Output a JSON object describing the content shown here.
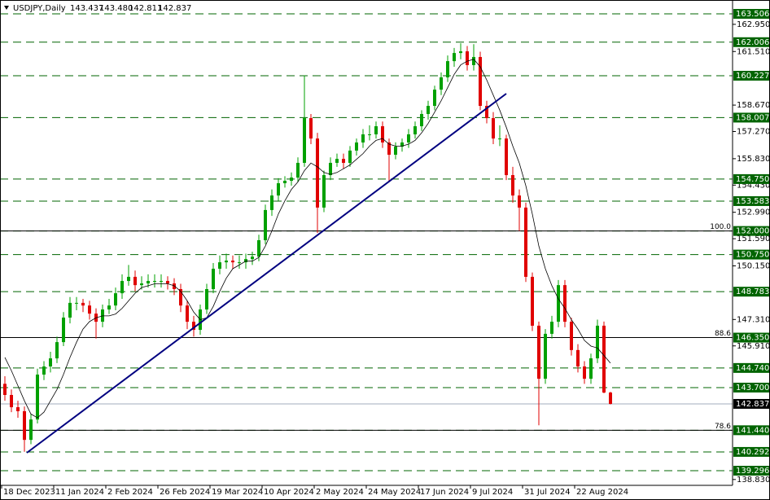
{
  "chart_data": {
    "type": "candlestick",
    "header": {
      "symbol": "USDJPY,Daily",
      "ohlc": [
        "143.437",
        "143.480",
        "142.811",
        "142.837"
      ]
    },
    "categories": [
      "18 Dec 2023",
      "11 Jan 2024",
      "2 Feb 2024",
      "26 Feb 2024",
      "19 Mar 2024",
      "10 Apr 2024",
      "2 May 2024",
      "24 May 2024",
      "17 Jun 2024",
      "9 Jul 2024",
      "31 Jul 2024",
      "22 Aug 2024"
    ],
    "open": [
      143.9,
      143.31,
      142.66,
      142.45,
      140.93,
      142.01,
      144.39,
      144.82,
      145.25,
      146.11,
      147.41,
      148.19,
      148.19,
      148.05,
      147.62,
      147.19,
      147.84,
      148.05,
      148.7,
      149.35,
      149.57,
      149.13,
      149.22,
      149.35,
      149.35,
      149.35,
      149.22,
      148.92,
      148.05,
      147.19,
      146.76,
      147.84,
      148.92,
      150.0,
      150.34,
      150.43,
      150.34,
      150.34,
      150.51,
      150.64,
      151.51,
      153.11,
      153.88,
      154.53,
      154.66,
      154.83,
      155.61,
      157.98,
      156.9,
      153.24,
      154.96,
      155.61,
      155.82,
      155.61,
      156.26,
      156.69,
      157.12,
      157.12,
      157.55,
      156.69,
      156.04,
      156.47,
      156.69,
      157.12,
      157.55,
      158.2,
      158.63,
      159.49,
      160.14,
      161.0,
      161.43,
      161.52,
      160.79,
      161.22,
      158.63,
      157.98,
      156.9,
      156.9,
      154.96,
      153.88,
      153.24,
      149.57,
      146.98,
      144.17,
      146.55,
      147.19,
      149.13,
      147.19,
      145.69,
      144.82,
      144.17,
      145.25,
      146.98,
      143.437
    ],
    "high": [
      144.3,
      143.6,
      143.0,
      142.7,
      142.3,
      144.7,
      145.1,
      145.6,
      146.4,
      147.7,
      148.5,
      148.5,
      148.4,
      148.3,
      147.9,
      148.1,
      148.4,
      149.0,
      149.7,
      150.2,
      149.9,
      149.6,
      149.7,
      149.7,
      149.7,
      149.6,
      149.5,
      149.2,
      148.3,
      147.5,
      148.1,
      149.2,
      150.3,
      150.7,
      150.8,
      150.7,
      150.7,
      150.8,
      150.9,
      151.8,
      153.4,
      154.2,
      154.8,
      154.9,
      155.1,
      155.9,
      160.25,
      158.2,
      157.2,
      155.2,
      155.9,
      156.1,
      156.1,
      156.5,
      156.9,
      157.4,
      157.6,
      157.8,
      157.8,
      156.9,
      156.7,
      156.9,
      157.4,
      157.8,
      158.4,
      158.9,
      159.7,
      160.4,
      161.3,
      161.7,
      161.95,
      161.8,
      161.9,
      161.5,
      158.9,
      158.3,
      157.6,
      157.1,
      155.4,
      154.2,
      153.5,
      149.8,
      147.2,
      146.8,
      147.5,
      149.4,
      149.4,
      147.4,
      146.0,
      145.1,
      145.5,
      147.3,
      147.2,
      143.48
    ],
    "low": [
      143.0,
      142.4,
      142.1,
      140.3,
      140.7,
      141.8,
      144.1,
      144.5,
      145.0,
      145.9,
      147.1,
      147.8,
      147.7,
      147.3,
      146.3,
      146.9,
      147.6,
      147.8,
      148.4,
      149.1,
      148.8,
      148.9,
      149.0,
      149.0,
      149.0,
      148.9,
      148.6,
      147.7,
      146.8,
      146.4,
      146.5,
      147.6,
      148.7,
      149.7,
      150.0,
      150.0,
      150.0,
      150.0,
      150.2,
      150.4,
      151.3,
      152.8,
      153.6,
      154.3,
      154.4,
      154.6,
      155.4,
      156.6,
      151.9,
      153.0,
      154.7,
      155.4,
      155.3,
      155.4,
      156.0,
      156.4,
      156.8,
      156.9,
      156.4,
      154.6,
      155.8,
      156.2,
      156.4,
      156.9,
      157.3,
      157.9,
      158.4,
      159.2,
      159.9,
      160.7,
      161.1,
      160.5,
      160.5,
      158.4,
      157.7,
      156.6,
      156.5,
      154.7,
      153.5,
      152.0,
      149.3,
      146.7,
      141.7,
      143.9,
      146.3,
      146.9,
      146.9,
      145.4,
      144.5,
      143.9,
      143.9,
      145.0,
      143.4,
      142.811
    ],
    "close": [
      143.31,
      142.66,
      142.45,
      140.93,
      142.01,
      144.39,
      144.82,
      145.25,
      146.11,
      147.41,
      148.19,
      148.19,
      148.05,
      147.62,
      147.19,
      147.84,
      148.05,
      148.7,
      149.35,
      149.57,
      149.13,
      149.22,
      149.35,
      149.35,
      149.35,
      149.22,
      148.92,
      148.05,
      147.19,
      146.76,
      147.84,
      148.92,
      150.0,
      150.34,
      150.43,
      150.34,
      150.34,
      150.51,
      150.64,
      151.51,
      153.11,
      153.88,
      154.53,
      154.66,
      154.83,
      155.61,
      157.98,
      156.9,
      153.24,
      154.96,
      155.61,
      155.82,
      155.61,
      156.26,
      156.69,
      157.12,
      157.12,
      157.55,
      156.69,
      156.04,
      156.47,
      156.69,
      157.12,
      157.55,
      158.2,
      158.63,
      159.49,
      160.14,
      161.0,
      161.43,
      161.52,
      160.79,
      161.22,
      158.63,
      157.98,
      156.9,
      156.9,
      154.96,
      153.88,
      153.24,
      149.57,
      146.98,
      144.17,
      146.55,
      147.19,
      149.13,
      147.19,
      145.69,
      144.82,
      144.17,
      145.25,
      146.98,
      143.437,
      142.837
    ],
    "ma": [
      145.3,
      144.6,
      143.8,
      143.0,
      142.3,
      142.1,
      142.4,
      143.0,
      143.6,
      144.4,
      145.3,
      146.1,
      146.8,
      147.2,
      147.4,
      147.5,
      147.5,
      147.6,
      147.9,
      148.3,
      148.7,
      149.0,
      149.1,
      149.2,
      149.2,
      149.2,
      149.1,
      148.8,
      148.3,
      147.7,
      147.3,
      147.4,
      148.0,
      148.8,
      149.5,
      150.0,
      150.2,
      150.4,
      150.4,
      150.6,
      151.2,
      152.0,
      152.9,
      153.6,
      154.2,
      154.6,
      155.2,
      155.6,
      155.4,
      155.1,
      155.0,
      155.1,
      155.3,
      155.5,
      155.8,
      156.1,
      156.5,
      156.8,
      156.9,
      156.6,
      156.5,
      156.5,
      156.6,
      156.8,
      157.2,
      157.7,
      158.3,
      158.9,
      159.6,
      160.3,
      160.8,
      161.0,
      161.1,
      160.7,
      160.0,
      159.2,
      158.4,
      157.5,
      156.5,
      155.6,
      154.4,
      152.9,
      151.2,
      150.0,
      149.1,
      148.4,
      147.9,
      147.3,
      146.8,
      146.2,
      145.9,
      145.8,
      145.4,
      145.0
    ],
    "up_color": "#00a000",
    "down_color": "#e00000",
    "ma_color": "#000000",
    "ylim": [
      138.52,
      164.24
    ],
    "yticks": [
      {
        "value": 162.95,
        "label": "162.950"
      },
      {
        "value": 161.51,
        "label": "161.510"
      },
      {
        "value": 158.67,
        "label": "158.670"
      },
      {
        "value": 157.27,
        "label": "157.270"
      },
      {
        "value": 155.83,
        "label": "155.830"
      },
      {
        "value": 154.43,
        "label": "154.430"
      },
      {
        "value": 152.99,
        "label": "152.990"
      },
      {
        "value": 151.59,
        "label": "151.590"
      },
      {
        "value": 150.15,
        "label": "150.150"
      },
      {
        "value": 147.31,
        "label": "147.310"
      },
      {
        "value": 145.91,
        "label": "145.910"
      },
      {
        "value": 138.83,
        "label": "138.830"
      }
    ],
    "levels": [
      163.506,
      162.006,
      160.227,
      158.007,
      {
        "value": 154.75,
        "label": "154.750"
      },
      153.583,
      {
        "value": 152,
        "label": "152.000"
      },
      {
        "value": 150.75,
        "label": "150.750"
      },
      148.783,
      {
        "value": 146.35,
        "label": "146.350"
      },
      {
        "value": 144.74,
        "label": "144.740"
      },
      {
        "value": 143.7,
        "label": "143.700"
      },
      {
        "value": 141.44,
        "label": "141.440"
      },
      140.292,
      139.296
    ],
    "level_color": "#006400",
    "fib": [
      {
        "value": 152,
        "label": "100.0"
      },
      {
        "value": 146.35,
        "label": "88.6"
      },
      {
        "value": 141.44,
        "label": "78.6"
      }
    ],
    "last": 142.837
  }
}
